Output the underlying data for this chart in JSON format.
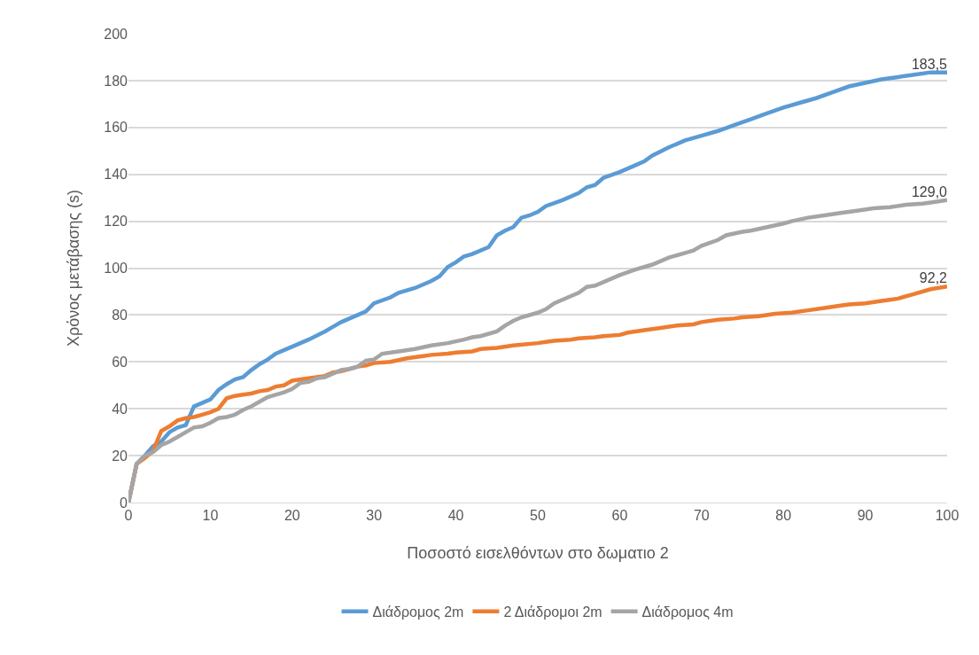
{
  "chart_data": {
    "type": "line",
    "xlabel": "Ποσοστό εισελθόντων στο δωματιο 2",
    "ylabel": "Χρόνος μετάβασης (s)",
    "xlim": [
      0,
      100
    ],
    "xticks": [
      0,
      10,
      20,
      30,
      40,
      50,
      60,
      70,
      80,
      90,
      100
    ],
    "ylim": [
      0,
      200
    ],
    "yticks": [
      0,
      20,
      40,
      60,
      80,
      100,
      120,
      140,
      160,
      180,
      200
    ],
    "grid": "y",
    "legend": "bottom",
    "marker": "none",
    "line_style": "solid",
    "series": [
      {
        "name": "Διάδρομος 2m",
        "color": "#5b9bd5",
        "x": [
          0,
          1,
          2,
          3,
          4,
          5,
          6,
          7,
          8,
          9,
          10,
          11,
          12,
          13,
          14,
          15,
          16,
          17,
          18,
          20,
          22,
          24,
          25,
          26,
          28,
          29,
          30,
          32,
          33,
          35,
          37,
          38,
          39,
          40,
          41,
          42,
          44,
          45,
          46,
          47,
          48,
          49,
          50,
          51,
          53,
          55,
          56,
          57,
          58,
          60,
          62,
          63,
          64,
          66,
          68,
          70,
          72,
          74,
          76,
          78,
          80,
          82,
          84,
          86,
          88,
          90,
          92,
          94,
          96,
          98,
          100
        ],
        "values": [
          0,
          16.5,
          20,
          24,
          26,
          30,
          32,
          33,
          41,
          42.5,
          44,
          48,
          50.5,
          52.5,
          53.5,
          56.5,
          59,
          61,
          63.5,
          66.5,
          69.5,
          73,
          75,
          77,
          80,
          81.5,
          85,
          87.5,
          89.5,
          91.5,
          94.5,
          96.5,
          100.5,
          102.5,
          105,
          106,
          109,
          114,
          116,
          117.5,
          121.5,
          122.5,
          124,
          126.5,
          129,
          132,
          134.5,
          135.5,
          138.5,
          141,
          144,
          145.5,
          148,
          151.5,
          154.5,
          156.5,
          158.5,
          161,
          163.5,
          166,
          168.5,
          170.5,
          172.5,
          175,
          177.5,
          179,
          180.5,
          181.5,
          182.5,
          183.5,
          183.5
        ],
        "value_labels": [
          null,
          null,
          null,
          null,
          null,
          null,
          null,
          null,
          null,
          null,
          null,
          null,
          null,
          null,
          null,
          null,
          null,
          null,
          null,
          null,
          null,
          null,
          null,
          null,
          null,
          null,
          null,
          null,
          null,
          null,
          null,
          null,
          null,
          null,
          null,
          null,
          null,
          null,
          null,
          null,
          null,
          null,
          null,
          null,
          null,
          null,
          null,
          null,
          null,
          null,
          null,
          null,
          null,
          null,
          null,
          null,
          null,
          null,
          null,
          null,
          null,
          null,
          null,
          null,
          null,
          null,
          null,
          null,
          null,
          null,
          "183,5"
        ]
      },
      {
        "name": "2 Διάδρομοι 2m",
        "color": "#ed7d31",
        "x": [
          0,
          1,
          2,
          3,
          4,
          5,
          6,
          7,
          8,
          9,
          10,
          11,
          12,
          13,
          14,
          15,
          16,
          17,
          18,
          19,
          20,
          22,
          23,
          24,
          25,
          26,
          27,
          28,
          29,
          30,
          32,
          34,
          36,
          37,
          39,
          40,
          42,
          43,
          45,
          47,
          50,
          51,
          52,
          54,
          55,
          57,
          58,
          60,
          61,
          63,
          65,
          67,
          69,
          70,
          72,
          74,
          75,
          77,
          79,
          81,
          83,
          85,
          87,
          88,
          90,
          92,
          93,
          94,
          96,
          98,
          100
        ],
        "values": [
          0,
          16.5,
          19,
          22,
          30.5,
          32.5,
          35,
          36,
          36.5,
          37.5,
          38.5,
          40,
          44.5,
          45.5,
          46,
          46.5,
          47.5,
          48,
          49.5,
          50,
          52,
          53,
          53.5,
          54,
          55.5,
          56,
          57,
          58,
          58.5,
          59.5,
          60,
          61.5,
          62.5,
          63,
          63.5,
          64,
          64.5,
          65.5,
          66,
          67,
          68,
          68.5,
          69,
          69.5,
          70,
          70.5,
          71,
          71.5,
          72.5,
          73.5,
          74.5,
          75.5,
          76,
          77,
          78,
          78.5,
          79,
          79.5,
          80.5,
          81,
          82,
          83,
          84,
          84.5,
          85,
          86,
          86.5,
          87,
          89,
          91,
          92.2
        ],
        "value_labels": [
          null,
          null,
          null,
          null,
          null,
          null,
          null,
          null,
          null,
          null,
          null,
          null,
          null,
          null,
          null,
          null,
          null,
          null,
          null,
          null,
          null,
          null,
          null,
          null,
          null,
          null,
          null,
          null,
          null,
          null,
          null,
          null,
          null,
          null,
          null,
          null,
          null,
          null,
          null,
          null,
          null,
          null,
          null,
          null,
          null,
          null,
          null,
          null,
          null,
          null,
          null,
          null,
          null,
          null,
          null,
          null,
          null,
          null,
          null,
          null,
          null,
          null,
          null,
          null,
          null,
          null,
          null,
          null,
          null,
          null,
          "92,2"
        ]
      },
      {
        "name": "Διάδρομος 4m",
        "color": "#a5a5a5",
        "x": [
          0,
          1,
          2,
          3,
          4,
          5,
          6,
          7,
          8,
          9,
          10,
          11,
          12,
          13,
          14,
          15,
          16,
          17,
          18,
          19,
          20,
          21,
          22,
          23,
          24,
          25,
          26,
          27,
          28,
          29,
          30,
          31,
          33,
          35,
          37,
          39,
          41,
          42,
          43,
          45,
          46,
          47,
          48,
          50,
          51,
          52,
          54,
          55,
          56,
          57,
          59,
          60,
          62,
          64,
          66,
          68,
          69,
          70,
          72,
          73,
          75,
          76,
          78,
          80,
          81,
          83,
          85,
          87,
          89,
          91,
          93,
          95,
          97,
          98,
          100
        ],
        "values": [
          0,
          16.5,
          20,
          21.5,
          24.5,
          26,
          28,
          30,
          32,
          32.5,
          34,
          36,
          36.5,
          37.5,
          39.5,
          41,
          43,
          45,
          46,
          47,
          48.5,
          51,
          51.5,
          53,
          53.5,
          55,
          56.5,
          57,
          58,
          60.5,
          61,
          63.5,
          64.5,
          65.5,
          67,
          68,
          69.5,
          70.5,
          71,
          73,
          75.5,
          77.5,
          79,
          81,
          82.5,
          85,
          88,
          89.5,
          92,
          92.5,
          95.5,
          97,
          99.5,
          101.5,
          104.5,
          106.5,
          107.5,
          109.5,
          112,
          114,
          115.5,
          116,
          117.5,
          119,
          120,
          121.5,
          122.5,
          123.5,
          124.5,
          125.5,
          126,
          127,
          127.5,
          128,
          129
        ],
        "value_labels": [
          null,
          null,
          null,
          null,
          null,
          null,
          null,
          null,
          null,
          null,
          null,
          null,
          null,
          null,
          null,
          null,
          null,
          null,
          null,
          null,
          null,
          null,
          null,
          null,
          null,
          null,
          null,
          null,
          null,
          null,
          null,
          null,
          null,
          null,
          null,
          null,
          null,
          null,
          null,
          null,
          null,
          null,
          null,
          null,
          null,
          null,
          null,
          null,
          null,
          null,
          null,
          null,
          null,
          null,
          null,
          null,
          null,
          null,
          null,
          null,
          null,
          null,
          null,
          null,
          null,
          null,
          null,
          null,
          null,
          null,
          null,
          null,
          null,
          null,
          "129,0"
        ]
      }
    ]
  }
}
